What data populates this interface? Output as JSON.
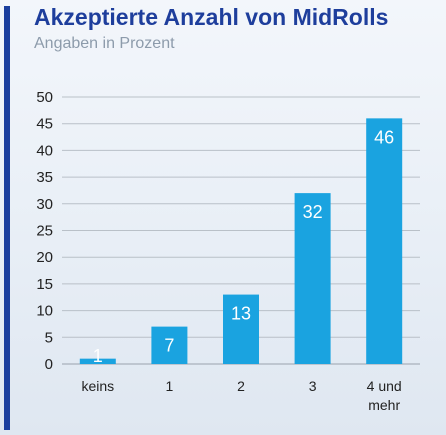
{
  "chart_data": {
    "type": "bar",
    "title": "Akzeptierte Anzahl von MidRolls",
    "subtitle": "Angaben in Prozent",
    "categories": [
      "keins",
      "1",
      "2",
      "3",
      "4 und\nmehr"
    ],
    "values": [
      1,
      7,
      13,
      32,
      46
    ],
    "ylim": [
      0,
      50
    ],
    "yticks": [
      0,
      5,
      10,
      15,
      20,
      25,
      30,
      35,
      40,
      45,
      50
    ],
    "grid": true,
    "colors": {
      "bar": "#1aa3e0",
      "title": "#1e3e9c",
      "accent": "#1b3f9e"
    }
  }
}
